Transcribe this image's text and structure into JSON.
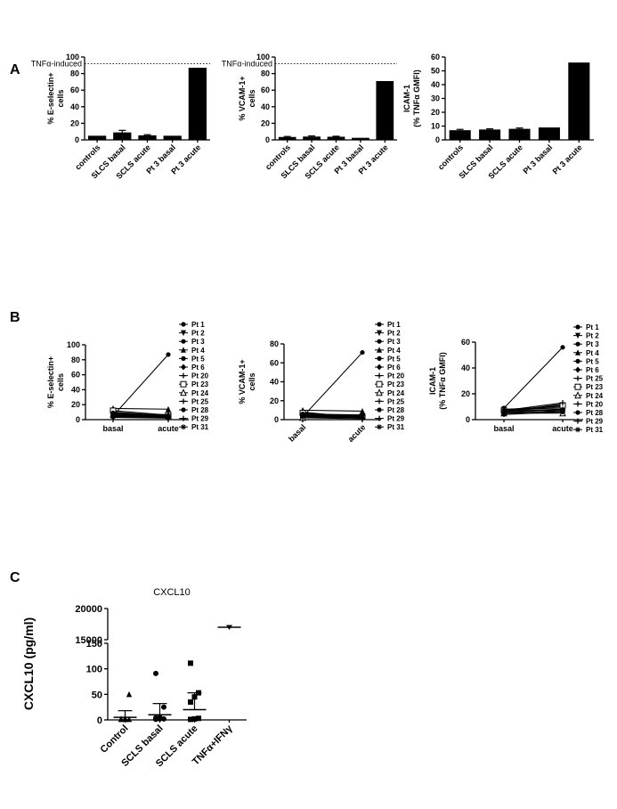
{
  "panel_labels": [
    "A",
    "B",
    "C"
  ],
  "chart_data": [
    {
      "id": "A1",
      "type": "bar",
      "ylabel_line1": "% E-selectin+",
      "ylabel_line2": "cells",
      "ylim": [
        0,
        100
      ],
      "yticks": [
        0,
        20,
        40,
        60,
        80,
        100
      ],
      "categories": [
        "controls",
        "SLCS basal",
        "SCLS acute",
        "Pt 3 basal",
        "Pt 3 acute"
      ],
      "values": [
        5,
        9,
        5.5,
        5,
        87
      ],
      "error": [
        0,
        2.5,
        0.8,
        0,
        0
      ],
      "reference_line": {
        "label": "TNFα-induced",
        "value": 92
      }
    },
    {
      "id": "A2",
      "type": "bar",
      "ylabel_line1": "% VCAM-1+",
      "ylabel_line2": "cells",
      "ylim": [
        0,
        100
      ],
      "yticks": [
        0,
        20,
        40,
        60,
        80,
        100
      ],
      "categories": [
        "controls",
        "SLCS basal",
        "SCLS acute",
        "Pt 3 basal",
        "Pt 3 acute"
      ],
      "values": [
        3.5,
        4,
        3.8,
        2.5,
        71
      ],
      "error": [
        0.6,
        0.8,
        0.6,
        0,
        0
      ],
      "reference_line": {
        "label": "TNFα-induced",
        "value": 92
      }
    },
    {
      "id": "A3",
      "type": "bar",
      "ylabel_line1": "ICAM-1",
      "ylabel_line2": "(% TNFα GMFI)",
      "ylim": [
        0,
        60
      ],
      "yticks": [
        0,
        10,
        20,
        30,
        40,
        50,
        60
      ],
      "categories": [
        "controls",
        "SLCS basal",
        "SCLS acute",
        "Pt 3 basal",
        "Pt 3 acute"
      ],
      "values": [
        7,
        7.5,
        8,
        9,
        56
      ],
      "error": [
        0.6,
        0.5,
        0.6,
        0,
        0
      ]
    },
    {
      "id": "B1",
      "type": "line",
      "ylabel_line1": "% E-selectin+",
      "ylabel_line2": "cells",
      "ylim": [
        0,
        100
      ],
      "yticks": [
        0,
        20,
        40,
        60,
        80,
        100
      ],
      "x": [
        "basal",
        "acute"
      ],
      "x_rotated": false,
      "series": [
        {
          "name": "Pt 1",
          "values": [
            5,
            4
          ]
        },
        {
          "name": "Pt 2",
          "values": [
            8,
            6
          ]
        },
        {
          "name": "Pt 3",
          "values": [
            5,
            87
          ]
        },
        {
          "name": "Pt 4",
          "values": [
            15,
            14
          ]
        },
        {
          "name": "Pt 5",
          "values": [
            10,
            5
          ]
        },
        {
          "name": "Pt 6",
          "values": [
            4,
            3
          ]
        },
        {
          "name": "Pt 20",
          "values": [
            6,
            4
          ]
        },
        {
          "name": "Pt 23",
          "values": [
            12,
            6
          ]
        },
        {
          "name": "Pt 24",
          "values": [
            7,
            5
          ]
        },
        {
          "name": "Pt 25",
          "values": [
            3,
            2
          ]
        },
        {
          "name": "Pt 28",
          "values": [
            9,
            4
          ]
        },
        {
          "name": "Pt 29",
          "values": [
            6,
            7
          ]
        },
        {
          "name": "Pt 31",
          "values": [
            4,
            3
          ]
        }
      ]
    },
    {
      "id": "B2",
      "type": "line",
      "ylabel_line1": "% VCAM-1+",
      "ylabel_line2": "cells",
      "ylim": [
        0,
        80
      ],
      "yticks": [
        0,
        20,
        40,
        60,
        80
      ],
      "x": [
        "basal",
        "acute"
      ],
      "x_rotated": true,
      "series": [
        {
          "name": "Pt 1",
          "values": [
            4,
            3
          ]
        },
        {
          "name": "Pt 2",
          "values": [
            6,
            4
          ]
        },
        {
          "name": "Pt 3",
          "values": [
            3,
            71
          ]
        },
        {
          "name": "Pt 4",
          "values": [
            10,
            9
          ]
        },
        {
          "name": "Pt 5",
          "values": [
            8,
            2
          ]
        },
        {
          "name": "Pt 6",
          "values": [
            5,
            3
          ]
        },
        {
          "name": "Pt 20",
          "values": [
            3,
            2
          ]
        },
        {
          "name": "Pt 23",
          "values": [
            7,
            3
          ]
        },
        {
          "name": "Pt 24",
          "values": [
            2,
            3
          ]
        },
        {
          "name": "Pt 25",
          "values": [
            4,
            2
          ]
        },
        {
          "name": "Pt 28",
          "values": [
            6,
            5
          ]
        },
        {
          "name": "Pt 29",
          "values": [
            2,
            1
          ]
        },
        {
          "name": "Pt 31",
          "values": [
            5,
            4
          ]
        }
      ]
    },
    {
      "id": "B3",
      "type": "line",
      "ylabel_line1": "ICAM-1",
      "ylabel_line2": "(% TNFα GMFI)",
      "ylim": [
        0,
        60
      ],
      "yticks": [
        0,
        20,
        40,
        60
      ],
      "x": [
        "basal",
        "acute"
      ],
      "x_rotated": false,
      "series": [
        {
          "name": "Pt 1",
          "values": [
            7,
            8
          ]
        },
        {
          "name": "Pt 2",
          "values": [
            8,
            10
          ]
        },
        {
          "name": "Pt 3",
          "values": [
            9,
            56
          ]
        },
        {
          "name": "Pt 4",
          "values": [
            6,
            12
          ]
        },
        {
          "name": "Pt 5",
          "values": [
            5,
            7
          ]
        },
        {
          "name": "Pt 6",
          "values": [
            8,
            9
          ]
        },
        {
          "name": "Pt 25",
          "values": [
            6,
            6
          ]
        },
        {
          "name": "Pt 23",
          "values": [
            7,
            11
          ]
        },
        {
          "name": "Pt 24",
          "values": [
            5,
            5
          ]
        },
        {
          "name": "Pt 20",
          "values": [
            6,
            8
          ]
        },
        {
          "name": "Pt 28",
          "values": [
            4,
            6
          ]
        },
        {
          "name": "Pt 29",
          "values": [
            7,
            13
          ]
        },
        {
          "name": "Pt 31",
          "values": [
            8,
            7
          ]
        }
      ]
    },
    {
      "id": "C",
      "type": "scatter",
      "title": "CXCL10",
      "ylabel": "CXCL10 (pg/ml)",
      "y_axis_break": true,
      "yticks_lower": [
        0,
        50,
        100,
        150
      ],
      "yticks_upper": [
        15000,
        20000
      ],
      "categories": [
        "Control",
        "SCLS basal",
        "SCLS acute",
        "TNFα+IFNγ"
      ],
      "points": [
        [
          1,
          1,
          1,
          2,
          3,
          50
        ],
        [
          1,
          2,
          2,
          4,
          5,
          25,
          91
        ],
        [
          1,
          2,
          3,
          35,
          45,
          53,
          111
        ],
        [
          17000
        ]
      ],
      "means": [
        5,
        10,
        20,
        17000
      ],
      "sd": [
        13,
        22,
        33,
        0
      ]
    }
  ]
}
